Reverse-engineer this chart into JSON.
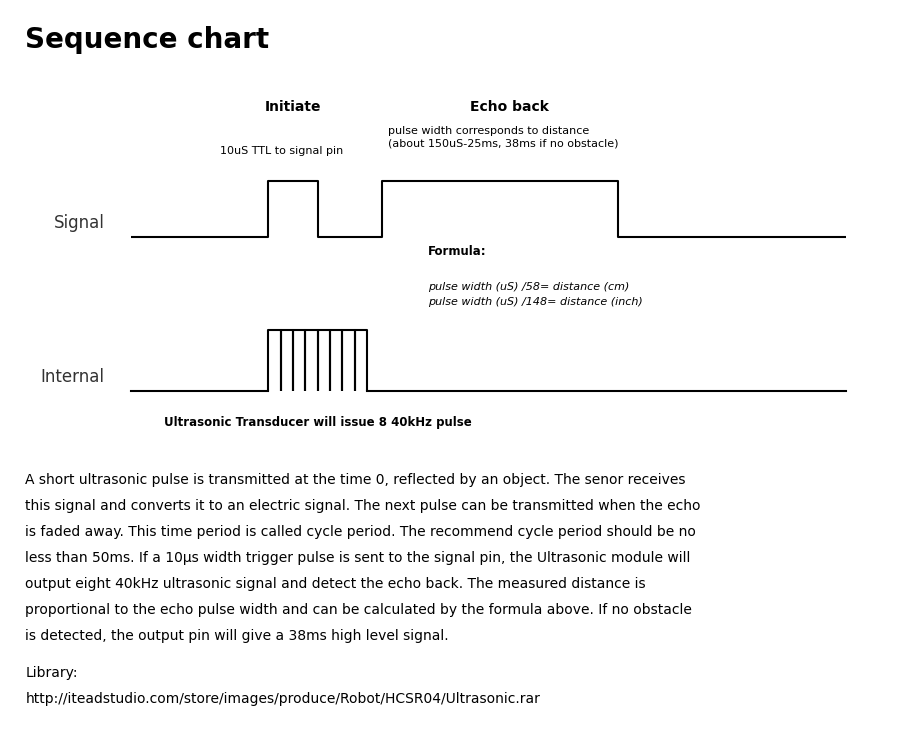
{
  "title": "Sequence chart",
  "bg_color": "#ffffff",
  "title_fontsize": 20,
  "title_fontweight": "bold",
  "initiate_label": "Initiate",
  "echo_label": "Echo back",
  "signal_label": "Signal",
  "internal_label": "Internal",
  "signal_note1": "10uS TTL to signal pin",
  "signal_note2": "pulse width corresponds to distance\n(about 150uS-25ms, 38ms if no obstacle)",
  "formula_title": "Formula:",
  "formula_line1": "pulse width (uS) /58= distance (cm)",
  "formula_line2": "pulse width (uS) /148= distance (inch)",
  "internal_note": "Ultrasonic Transducer will issue 8 40kHz pulse",
  "body_text_lines": [
    "A short ultrasonic pulse is transmitted at the time 0, reflected by an object. The senor receives",
    "this signal and converts it to an electric signal. The next pulse can be transmitted when the echo",
    "is faded away. This time period is called cycle period. The recommend cycle period should be no",
    "less than 50ms. If a 10μs width trigger pulse is sent to the signal pin, the Ultrasonic module will",
    "output eight 40kHz ultrasonic signal and detect the echo back. The measured distance is",
    "proportional to the echo pulse width and can be calculated by the formula above. If no obstacle",
    "is detected, the output pin will give a 38ms high level signal."
  ],
  "library_label": "Library:",
  "library_url": "http://iteadstudio.com/store/images/produce/Robot/HCSR04/Ultrasonic.rar",
  "line_color": "#000000",
  "text_color": "#333333",
  "line_width": 1.5,
  "num_internal_pulses": 8
}
